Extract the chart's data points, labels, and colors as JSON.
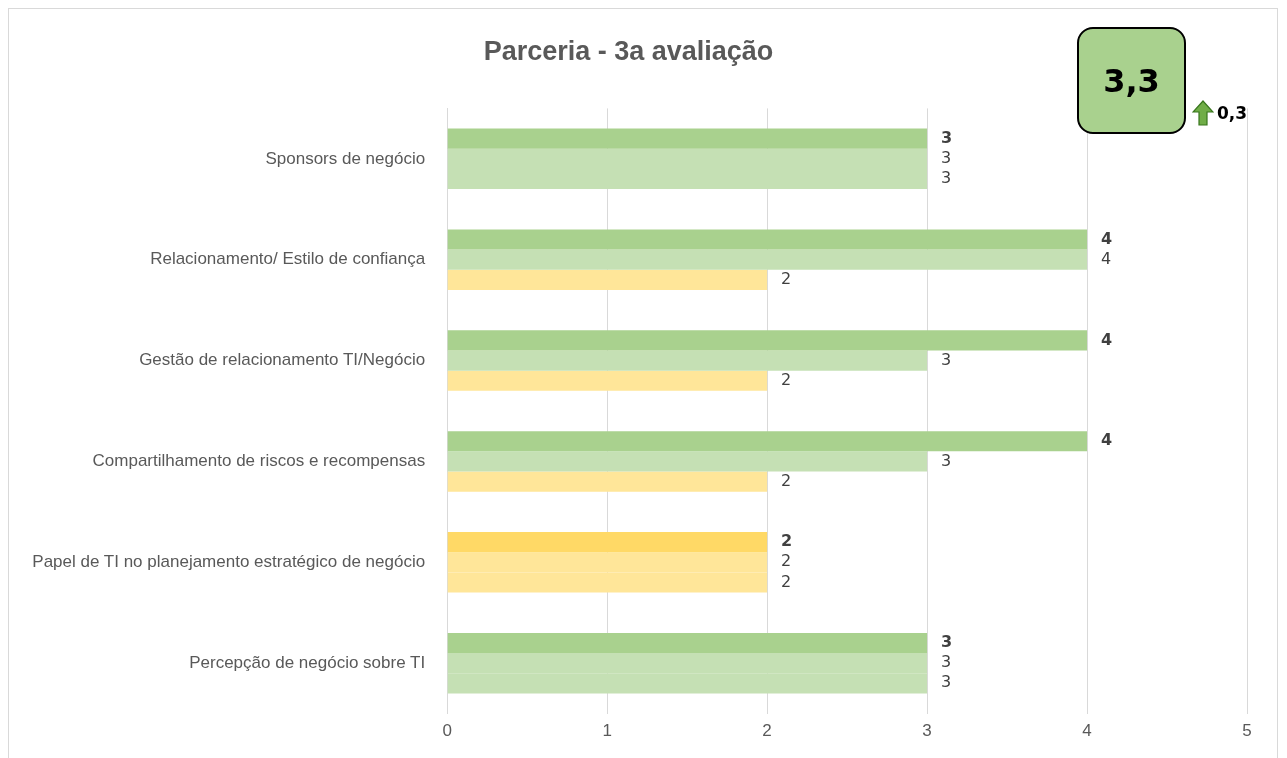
{
  "chart_data": {
    "type": "bar",
    "orientation": "horizontal",
    "title": "Parceria - 3a avaliação",
    "categories": [
      "Sponsors de negócio",
      "Relacionamento/ Estilo de confiança",
      "Gestão de relacionamento TI/Negócio",
      "Compartilhamento de riscos e recompensas",
      "Papel de TI no planejamento estratégico de negócio",
      "Percepção de negócio sobre TI"
    ],
    "series": [
      {
        "colors": [
          "#a9d18e",
          "#a9d18e",
          "#a9d18e",
          "#a9d18e",
          "#ffd966",
          "#a9d18e"
        ],
        "values": [
          3,
          4,
          4,
          4,
          2,
          3
        ]
      },
      {
        "colors": [
          "#c5e0b4",
          "#c5e0b4",
          "#c5e0b4",
          "#c5e0b4",
          "#ffe699",
          "#c5e0b4"
        ],
        "values": [
          3,
          4,
          3,
          3,
          2,
          3
        ]
      },
      {
        "colors": [
          "#c5e0b4",
          "#ffe699",
          "#ffe699",
          "#ffe699",
          "#ffe699",
          "#c5e0b4"
        ],
        "values": [
          3,
          2,
          2,
          2,
          2,
          3
        ]
      }
    ],
    "xlim": [
      0,
      5
    ],
    "xticks": [
      0,
      1,
      2,
      3,
      4,
      5
    ],
    "grid": "x",
    "data_labels": true,
    "legend": false,
    "annotations": [
      "3,3",
      "0,3"
    ]
  }
}
